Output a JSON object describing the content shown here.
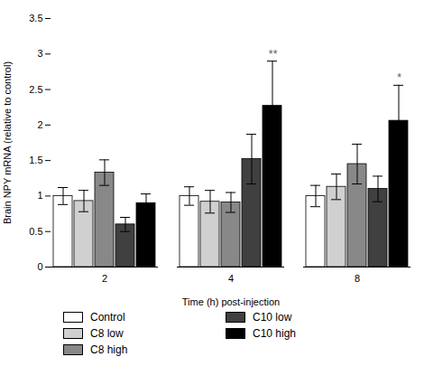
{
  "chart_data": {
    "type": "bar",
    "xlabel": "Time (h) post-injection",
    "ylabel": "Brain NPY mRNA (relative to control)",
    "categories": [
      "2",
      "4",
      "8"
    ],
    "series": [
      {
        "name": "Control",
        "color": "#ffffff",
        "values": [
          1.0,
          1.0,
          1.0
        ],
        "errors": [
          0.12,
          0.13,
          0.15
        ]
      },
      {
        "name": "C8 low",
        "color": "#d0d0d0",
        "values": [
          0.93,
          0.92,
          1.13
        ],
        "errors": [
          0.15,
          0.16,
          0.18
        ]
      },
      {
        "name": "C8 high",
        "color": "#888888",
        "values": [
          1.33,
          0.91,
          1.45
        ],
        "errors": [
          0.18,
          0.14,
          0.28
        ]
      },
      {
        "name": "C10 low",
        "color": "#404040",
        "values": [
          0.6,
          1.52,
          1.1
        ],
        "errors": [
          0.1,
          0.35,
          0.18
        ]
      },
      {
        "name": "C10 high",
        "color": "#000000",
        "values": [
          0.9,
          2.27,
          2.06
        ],
        "errors": [
          0.13,
          0.63,
          0.5
        ]
      }
    ],
    "annotations": [
      {
        "text": "**",
        "category": "4",
        "series": "C10 high"
      },
      {
        "text": "*",
        "category": "8",
        "series": "C10 high"
      }
    ],
    "ylim": [
      0,
      3.5
    ],
    "yticks": [
      0,
      0.5,
      1,
      1.5,
      2,
      2.5,
      3,
      3.5
    ],
    "legend": "bottom"
  }
}
